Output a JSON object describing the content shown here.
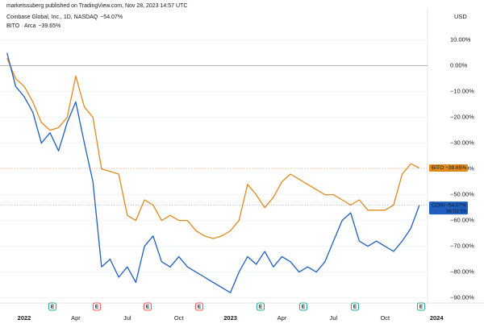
{
  "chart_data": {
    "type": "line",
    "attribution": "marketssuberg published on TradingView.com, Nov 28, 2023 14:57 UTC",
    "currency": "USD",
    "categories": [
      null,
      null,
      "2022",
      null,
      null,
      null,
      null,
      null,
      "Apr",
      null,
      null,
      null,
      null,
      null,
      "Jul",
      null,
      null,
      null,
      null,
      null,
      "Oct",
      null,
      null,
      null,
      null,
      null,
      "2023",
      null,
      null,
      null,
      null,
      null,
      "Apr",
      null,
      null,
      null,
      null,
      null,
      "Jul",
      null,
      null,
      null,
      null,
      null,
      "Oct",
      null,
      null,
      null,
      null,
      null,
      "2024"
    ],
    "series": [
      {
        "name": "BITO",
        "legend": "BITO · Arca",
        "change_label": "−39.65%",
        "color": "#e08a1e",
        "values": [
          3,
          -5,
          -8,
          -14,
          -22,
          -25,
          -24,
          -20,
          -4,
          -16,
          -20,
          -40,
          -41,
          -42,
          -58,
          -60,
          -52,
          -54,
          -60,
          -58,
          -60,
          -60,
          -64,
          -66,
          -67,
          -66,
          -64,
          -60,
          -46,
          -50,
          -55,
          -51,
          -45,
          -42,
          -44,
          -46,
          -48,
          -50,
          -50,
          -52,
          -54,
          -52,
          -56,
          -56,
          -56,
          -54,
          -42,
          -38,
          -39.65,
          null,
          null
        ]
      },
      {
        "name": "COIN",
        "legend": "Coinbase Global, Inc., 1D, NASDAQ",
        "change_label": "−54.07%",
        "countdown": "06:02:09",
        "color": "#1e5fbf",
        "values": [
          5,
          -8,
          -12,
          -18,
          -30,
          -26,
          -33,
          -22,
          -14,
          -30,
          -45,
          -78,
          -75,
          -82,
          -78,
          -84,
          -70,
          -66,
          -76,
          -78,
          -74,
          -78,
          -80,
          -82,
          -84,
          -86,
          -88,
          -80,
          -74,
          -77,
          -72,
          -78,
          -74,
          -76,
          -80,
          -78,
          -80,
          -76,
          -68,
          -60,
          -57,
          -68,
          -70,
          -68,
          -70,
          -72,
          -68,
          -63,
          -54.07,
          null,
          null
        ]
      }
    ],
    "ylim": [
      -92,
      23
    ],
    "yticks": [
      {
        "value": 10,
        "label": "10.00%"
      },
      {
        "value": 0,
        "label": "0.00%"
      },
      {
        "value": -10,
        "label": "−10.00%"
      },
      {
        "value": -20,
        "label": "−20.00%"
      },
      {
        "value": -30,
        "label": "−30.00%"
      },
      {
        "value": -40,
        "label": "−40.00%"
      },
      {
        "value": -50,
        "label": "−50.00%"
      },
      {
        "value": -60,
        "label": "−60.00%"
      },
      {
        "value": -70,
        "label": "−70.00%"
      },
      {
        "value": -80,
        "label": "−80.00%"
      },
      {
        "value": -90,
        "label": "−90.00%"
      }
    ],
    "grid": true,
    "earnings_markers": [
      {
        "label": "E",
        "color": "#26a69a"
      },
      {
        "label": "E",
        "color": "#ef5350"
      },
      {
        "label": "E",
        "color": "#ef5350"
      },
      {
        "label": "E",
        "color": "#ef5350"
      },
      {
        "label": "E",
        "color": "#26a69a"
      },
      {
        "label": "E",
        "color": "#26a69a"
      },
      {
        "label": "E",
        "color": "#26a69a"
      },
      {
        "label": "E",
        "color": "#26a69a"
      }
    ]
  }
}
